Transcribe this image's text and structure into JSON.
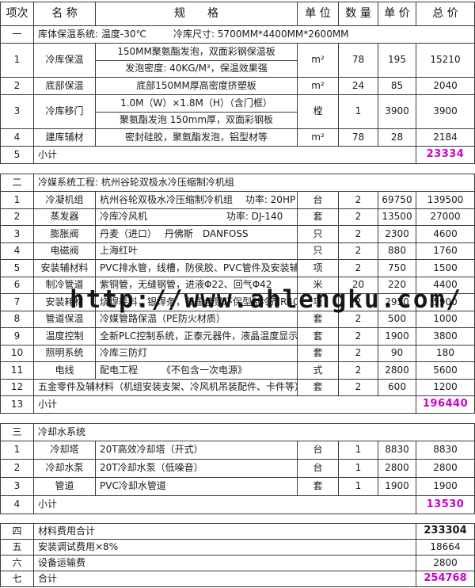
{
  "watermark": {
    "text": "http://www.ahlengku.com/"
  },
  "colors": {
    "accent": "#cc00cc",
    "grid": "#3b3b3b"
  },
  "header": {
    "labels": [
      "项次",
      "名 称",
      "规　　格",
      "单 位",
      "数 量",
      "单 价",
      "总 价"
    ]
  },
  "sections": [
    {
      "no": "一",
      "title": "库体保温系统: 温度-30℃",
      "title2": "冷库尺寸: 5700MM*4400MM*2600MM",
      "rows": [
        {
          "no": "1",
          "name": "冷库保温",
          "spec_lines": [
            "150MM聚氨酯发泡，双面彩钢保温板",
            "发泡密度: 40KG/M³，保温效果强"
          ],
          "unit": "m²",
          "qty": "78",
          "price": "195",
          "total": "15210"
        },
        {
          "no": "2",
          "name": "底部保温",
          "spec": "底部150MM厚高密度挤塑板",
          "spec_align": "center",
          "unit": "m²",
          "qty": "24",
          "price": "85",
          "total": "2040"
        },
        {
          "no": "3",
          "name": "冷库移门",
          "spec_lines": [
            "1.0M（W）×1.8M（H）（含门框）",
            "聚氨酯发泡 150mm厚，双面彩钢板"
          ],
          "unit": "樘",
          "qty": "1",
          "price": "3900",
          "total": "3900"
        },
        {
          "no": "4",
          "name": "建库辅材",
          "spec": "密封硅胶，聚氨酯发泡，铝型材等",
          "spec_align": "center",
          "unit": "m²",
          "qty": "78",
          "price": "28",
          "total": "2184"
        }
      ],
      "subtotal": {
        "no": "5",
        "label": "小计",
        "value": "23334"
      }
    },
    {
      "no": "二",
      "title": "冷媒系统工程: 杭州谷轮双极水冷压缩制冷机组",
      "title2": "",
      "rows": [
        {
          "no": "1",
          "name": "冷凝机组",
          "spec": "杭州谷轮双极水冷压缩制冷机组　 功率: 20HP",
          "unit": "台",
          "qty": "2",
          "price": "69750",
          "total": "139500"
        },
        {
          "no": "2",
          "name": "蒸发器",
          "spec": "冷库冷风机　　　　　　　　 功率: DJ-140",
          "unit": "套",
          "qty": "2",
          "price": "13500",
          "total": "27000"
        },
        {
          "no": "3",
          "name": "膨胀阀",
          "spec": "丹麦（进口）　 丹佛斯　DANFOSS",
          "unit": "只",
          "qty": "2",
          "price": "2300",
          "total": "4600"
        },
        {
          "no": "4",
          "name": "电磁阀",
          "spec": "上海红叶",
          "unit": "只",
          "qty": "2",
          "price": "880",
          "total": "1760"
        },
        {
          "no": "5",
          "name": "安装辅材料",
          "spec": "PVC排水管，线槽，防侯胶、PVC管件及安装辅材等",
          "unit": "项",
          "qty": "2",
          "price": "750",
          "total": "1500"
        },
        {
          "no": "6",
          "name": "制冷管道",
          "spec": "紫铜管，无缝钢管，进液Φ22、回气Φ42",
          "unit": "米",
          "qty": "20",
          "price": "220",
          "total": "4400"
        },
        {
          "no": "7",
          "name": "安装耗材",
          "spec": "烧焊耗料，银焊条，美国佳景环保型制冷剂R404等",
          "unit": "项",
          "qty": "2",
          "price": "2950",
          "total": "5900"
        },
        {
          "no": "8",
          "name": "管道保温",
          "spec": "冷媒管路保温（PE防火材质）",
          "unit": "套",
          "qty": "2",
          "price": "500",
          "total": "1000"
        },
        {
          "no": "9",
          "name": "温度控制",
          "spec": "全新PLC控制系统，正泰元器件，液晶温度显示",
          "unit": "套",
          "qty": "2",
          "price": "1900",
          "total": "3800"
        },
        {
          "no": "10",
          "name": "照明系统",
          "spec": "冷库三防灯",
          "unit": "套",
          "qty": "2",
          "price": "90",
          "total": "180"
        },
        {
          "no": "11",
          "name": "电线",
          "spec": "配电工程　　　《不包含一次电源》",
          "unit": "式",
          "qty": "2",
          "price": "2800",
          "total": "5600"
        },
        {
          "no": "12",
          "merged": "五金零件及辅材料（机组安装支架、冷风机吊装配件、卡件等）",
          "unit": "套",
          "qty": "2",
          "price": "600",
          "total": "1200"
        }
      ],
      "subtotal": {
        "no": "13",
        "label": "小计",
        "value": "196440"
      }
    },
    {
      "no": "三",
      "title": "冷却水系统",
      "title2": "",
      "rows": [
        {
          "no": "1",
          "name": "冷却塔",
          "spec": "20T高效冷却塔（开式）",
          "unit": "台",
          "qty": "1",
          "price": "8830",
          "total": "8830"
        },
        {
          "no": "2",
          "name": "冷却水泵",
          "spec": "20T冷却水泵（低噪音）",
          "unit": "台",
          "qty": "1",
          "price": "2800",
          "total": "2800"
        },
        {
          "no": "3",
          "name": "管道",
          "spec": "PVC冷却水管道",
          "unit": "套",
          "qty": "1",
          "price": "1900",
          "total": "1900"
        }
      ],
      "subtotal": {
        "no": "4",
        "label": "小计",
        "value": "13530"
      }
    }
  ],
  "summary": [
    {
      "no": "四",
      "label": "材料费用合计",
      "value": "233304",
      "bold": true
    },
    {
      "no": "五",
      "label": "安装调试费用×8%",
      "value": "18664"
    },
    {
      "no": "六",
      "label": "设备运输费",
      "value": "2800"
    },
    {
      "no": "七",
      "label": "合计",
      "value": "254768",
      "accent": true
    }
  ]
}
